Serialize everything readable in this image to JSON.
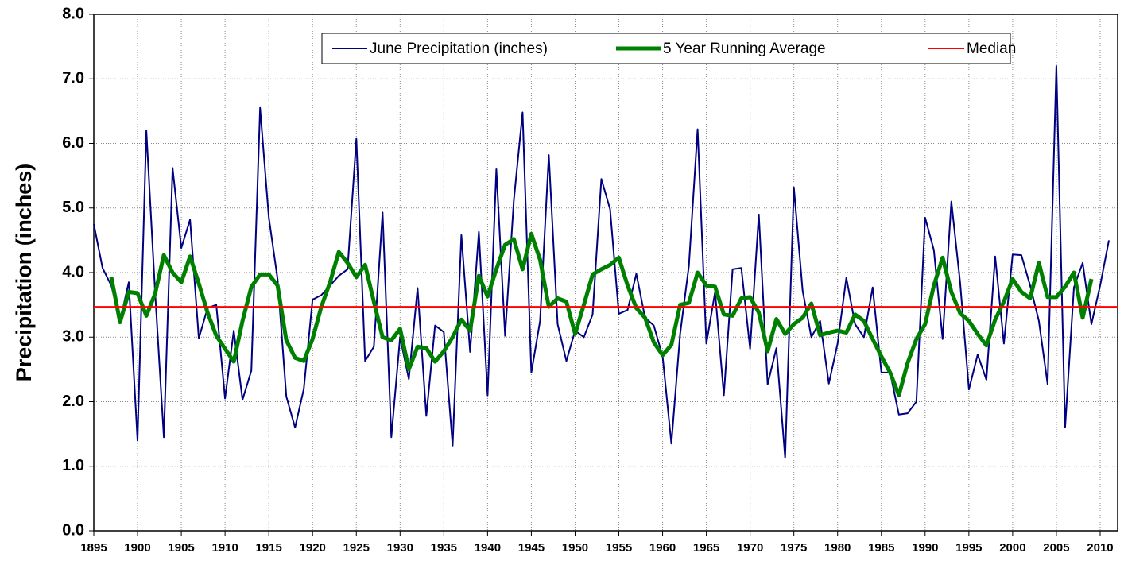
{
  "chart_data": {
    "type": "line",
    "ylabel": "Precipitation (inches)",
    "x": [
      1895,
      1896,
      1897,
      1898,
      1899,
      1900,
      1901,
      1902,
      1903,
      1904,
      1905,
      1906,
      1907,
      1908,
      1909,
      1910,
      1911,
      1912,
      1913,
      1914,
      1915,
      1916,
      1917,
      1918,
      1919,
      1920,
      1921,
      1922,
      1923,
      1924,
      1925,
      1926,
      1927,
      1928,
      1929,
      1930,
      1931,
      1932,
      1933,
      1934,
      1935,
      1936,
      1937,
      1938,
      1939,
      1940,
      1941,
      1942,
      1943,
      1944,
      1945,
      1946,
      1947,
      1948,
      1949,
      1950,
      1951,
      1952,
      1953,
      1954,
      1955,
      1956,
      1957,
      1958,
      1959,
      1960,
      1961,
      1962,
      1963,
      1964,
      1965,
      1966,
      1967,
      1968,
      1969,
      1970,
      1971,
      1972,
      1973,
      1974,
      1975,
      1976,
      1977,
      1978,
      1979,
      1980,
      1981,
      1982,
      1983,
      1984,
      1985,
      1986,
      1987,
      1988,
      1989,
      1990,
      1991,
      1992,
      1993,
      1994,
      1995,
      1996,
      1997,
      1998,
      1999,
      2000,
      2001,
      2002,
      2003,
      2004,
      2005,
      2006,
      2007,
      2008,
      2009,
      2010,
      2011
    ],
    "series": [
      {
        "name": "June Precipitation (inches)",
        "color": "#000080",
        "width": 2,
        "values": [
          4.75,
          4.07,
          3.8,
          3.25,
          3.85,
          1.4,
          6.2,
          3.7,
          1.45,
          5.62,
          4.38,
          4.82,
          2.98,
          3.45,
          3.5,
          2.05,
          3.1,
          2.03,
          2.48,
          6.55,
          4.85,
          3.9,
          2.08,
          1.6,
          2.2,
          3.58,
          3.65,
          3.8,
          3.95,
          4.05,
          6.07,
          2.63,
          2.85,
          4.93,
          1.45,
          3.0,
          2.35,
          3.76,
          1.78,
          3.18,
          3.08,
          1.32,
          4.58,
          2.77,
          4.63,
          2.1,
          5.6,
          3.02,
          5.12,
          6.48,
          2.45,
          3.25,
          5.82,
          3.2,
          2.63,
          3.1,
          3.0,
          3.35,
          5.45,
          4.98,
          3.36,
          3.42,
          3.98,
          3.3,
          3.18,
          2.7,
          1.35,
          3.05,
          4.1,
          6.22,
          2.9,
          3.7,
          2.1,
          4.05,
          4.07,
          2.82,
          4.9,
          2.27,
          2.83,
          1.13,
          5.32,
          3.72,
          3.0,
          3.25,
          2.28,
          2.9,
          3.92,
          3.2,
          3.0,
          3.77,
          2.45,
          2.45,
          1.8,
          1.82,
          2.0,
          4.85,
          4.35,
          2.97,
          5.1,
          3.85,
          2.19,
          2.73,
          2.34,
          4.25,
          2.9,
          4.28,
          4.27,
          3.8,
          3.25,
          2.27,
          7.2,
          1.6,
          3.77,
          4.15,
          3.2,
          3.8,
          4.5
        ]
      },
      {
        "name": "5 Year Running Average",
        "color": "#008000",
        "width": 5,
        "values": [
          null,
          null,
          3.93,
          3.23,
          3.7,
          3.68,
          3.33,
          3.67,
          4.27,
          4.0,
          3.85,
          4.25,
          3.83,
          3.38,
          3.02,
          2.82,
          2.62,
          3.25,
          3.78,
          3.97,
          3.97,
          3.8,
          2.95,
          2.68,
          2.63,
          2.97,
          3.47,
          3.85,
          4.32,
          4.15,
          3.93,
          4.12,
          3.55,
          3.0,
          2.95,
          3.13,
          2.5,
          2.85,
          2.83,
          2.62,
          2.78,
          3.0,
          3.27,
          3.1,
          3.95,
          3.63,
          4.05,
          4.43,
          4.52,
          4.05,
          4.6,
          4.2,
          3.47,
          3.6,
          3.55,
          3.05,
          3.5,
          3.97,
          4.05,
          4.12,
          4.23,
          3.8,
          3.45,
          3.3,
          2.92,
          2.72,
          2.88,
          3.5,
          3.53,
          4.0,
          3.8,
          3.78,
          3.35,
          3.33,
          3.6,
          3.62,
          3.38,
          2.78,
          3.28,
          3.05,
          3.2,
          3.3,
          3.52,
          3.03,
          3.07,
          3.1,
          3.07,
          3.35,
          3.25,
          2.97,
          2.7,
          2.45,
          2.1,
          2.6,
          2.97,
          3.2,
          3.8,
          4.23,
          3.7,
          3.37,
          3.25,
          3.05,
          2.87,
          3.27,
          3.55,
          3.9,
          3.7,
          3.6,
          4.15,
          3.62,
          3.62,
          3.78,
          4.0,
          3.3,
          3.9,
          null,
          null
        ]
      }
    ],
    "median": {
      "name": "Median",
      "color": "#ff0000",
      "value": 3.47
    },
    "xlim": [
      1895,
      2012
    ],
    "xticks": [
      1895,
      1900,
      1905,
      1910,
      1915,
      1920,
      1925,
      1930,
      1935,
      1940,
      1945,
      1950,
      1955,
      1960,
      1965,
      1970,
      1975,
      1980,
      1985,
      1990,
      1995,
      2000,
      2005,
      2010
    ],
    "ylim": [
      0,
      8
    ],
    "yticks": [
      {
        "value": 0,
        "label": "0.0"
      },
      {
        "value": 1,
        "label": "1.0"
      },
      {
        "value": 2,
        "label": "2.0"
      },
      {
        "value": 3,
        "label": "3.0"
      },
      {
        "value": 4,
        "label": "4.0"
      },
      {
        "value": 5,
        "label": "5.0"
      },
      {
        "value": 6,
        "label": "6.0"
      },
      {
        "value": 7,
        "label": "7.0"
      },
      {
        "value": 8,
        "label": "8.0"
      }
    ],
    "grid": true
  }
}
